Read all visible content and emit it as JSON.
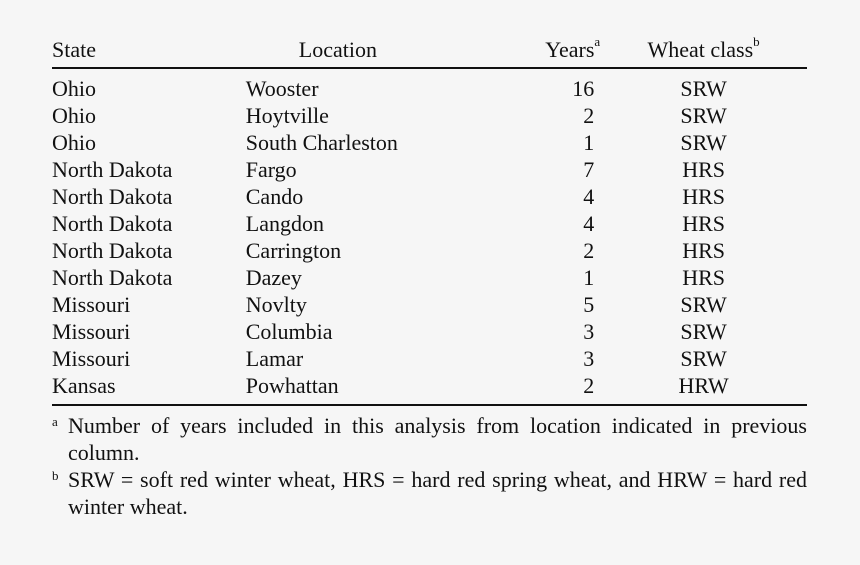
{
  "table": {
    "headers": {
      "state": "State",
      "location": "Location",
      "years": "Years",
      "years_mark": "a",
      "wheat_class": "Wheat class",
      "wheat_class_mark": "b"
    },
    "rows": [
      {
        "state": "Ohio",
        "location": "Wooster",
        "years": "16",
        "wheat_class": "SRW"
      },
      {
        "state": "Ohio",
        "location": "Hoytville",
        "years": "2",
        "wheat_class": "SRW"
      },
      {
        "state": "Ohio",
        "location": "South Charleston",
        "years": "1",
        "wheat_class": "SRW"
      },
      {
        "state": "North Dakota",
        "location": "Fargo",
        "years": "7",
        "wheat_class": "HRS"
      },
      {
        "state": "North Dakota",
        "location": "Cando",
        "years": "4",
        "wheat_class": "HRS"
      },
      {
        "state": "North Dakota",
        "location": "Langdon",
        "years": "4",
        "wheat_class": "HRS"
      },
      {
        "state": "North Dakota",
        "location": "Carrington",
        "years": "2",
        "wheat_class": "HRS"
      },
      {
        "state": "North Dakota",
        "location": "Dazey",
        "years": "1",
        "wheat_class": "HRS"
      },
      {
        "state": "Missouri",
        "location": "Novlty",
        "years": "5",
        "wheat_class": "SRW"
      },
      {
        "state": "Missouri",
        "location": "Columbia",
        "years": "3",
        "wheat_class": "SRW"
      },
      {
        "state": "Missouri",
        "location": "Lamar",
        "years": "3",
        "wheat_class": "SRW"
      },
      {
        "state": "Kansas",
        "location": "Powhattan",
        "years": "2",
        "wheat_class": "HRW"
      }
    ]
  },
  "footnotes": [
    {
      "mark": "a",
      "text": "Number of years included in this analysis from location indicated in previous column."
    },
    {
      "mark": "b",
      "text": "SRW = soft red winter wheat, HRS = hard red spring wheat, and HRW = hard red winter wheat."
    }
  ]
}
